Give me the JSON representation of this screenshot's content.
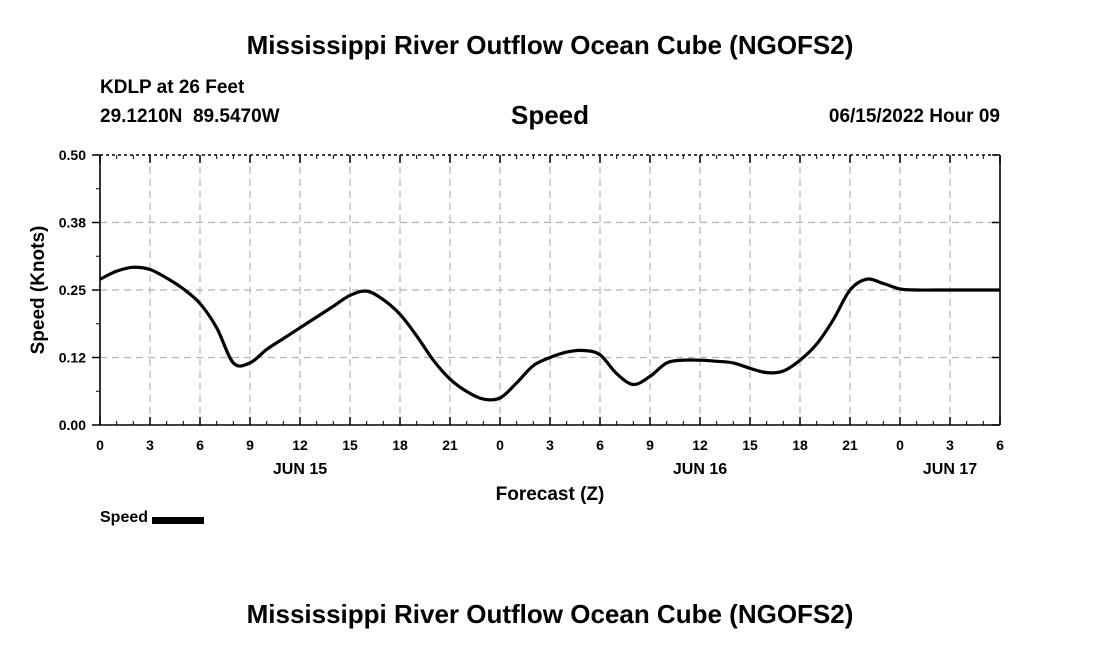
{
  "page": {
    "title": "Mississippi River Outflow Ocean Cube (NGOFS2)",
    "footer_title": "Mississippi River Outflow Ocean Cube (NGOFS2)",
    "station": "KDLP at 26 Feet",
    "latitude": "29.1210N",
    "longitude": "89.5470W",
    "subtitle": "Speed",
    "timestamp": "06/15/2022 Hour 09"
  },
  "legend": {
    "label": "Speed",
    "color": "#000000"
  },
  "chart_data": {
    "type": "line",
    "title": "Speed",
    "xlabel": "Forecast (Z)",
    "ylabel": "Speed (Knots)",
    "xlim": [
      0,
      54
    ],
    "ylim": [
      0,
      0.5
    ],
    "grid": true,
    "y_ticks": [
      0.0,
      0.125,
      0.25,
      0.375,
      0.5
    ],
    "y_tick_labels": [
      "0.00",
      "0.12",
      "0.25",
      "0.38",
      "0.50"
    ],
    "x_ticks": [
      0,
      3,
      6,
      9,
      12,
      15,
      18,
      21,
      24,
      27,
      30,
      33,
      36,
      39,
      42,
      45,
      48,
      51,
      54
    ],
    "x_tick_labels": [
      "0",
      "3",
      "6",
      "9",
      "12",
      "15",
      "18",
      "21",
      "0",
      "3",
      "6",
      "9",
      "12",
      "15",
      "18",
      "21",
      "0",
      "3",
      "6"
    ],
    "date_labels": [
      {
        "x": 12,
        "label": "JUN 15"
      },
      {
        "x": 36,
        "label": "JUN 16"
      },
      {
        "x": 51,
        "label": "JUN 17"
      }
    ],
    "series": [
      {
        "name": "Speed",
        "color": "#000000",
        "x": [
          0,
          1,
          2,
          3,
          4,
          5,
          6,
          7,
          8,
          9,
          10,
          11,
          12,
          13,
          14,
          15,
          16,
          17,
          18,
          19,
          20,
          21,
          22,
          23,
          24,
          25,
          26,
          27,
          28,
          29,
          30,
          31,
          32,
          33,
          34,
          35,
          36,
          37,
          38,
          39,
          40,
          41,
          42,
          43,
          44,
          45,
          46,
          47,
          48,
          49,
          50,
          51,
          52,
          53,
          54
        ],
        "y": [
          0.27,
          0.285,
          0.292,
          0.288,
          0.272,
          0.252,
          0.225,
          0.18,
          0.115,
          0.115,
          0.14,
          0.16,
          0.18,
          0.2,
          0.22,
          0.24,
          0.248,
          0.232,
          0.205,
          0.165,
          0.12,
          0.085,
          0.062,
          0.048,
          0.05,
          0.078,
          0.11,
          0.125,
          0.135,
          0.138,
          0.13,
          0.095,
          0.075,
          0.09,
          0.115,
          0.12,
          0.12,
          0.118,
          0.115,
          0.105,
          0.097,
          0.1,
          0.12,
          0.15,
          0.195,
          0.25,
          0.27,
          0.262,
          0.252,
          0.25,
          0.25,
          0.25,
          0.25,
          0.25,
          0.25
        ]
      }
    ]
  }
}
